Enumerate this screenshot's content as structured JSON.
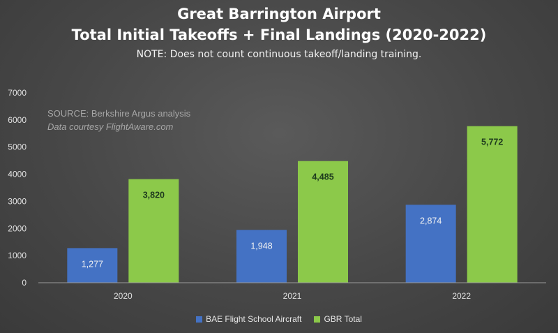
{
  "chart_data": {
    "type": "bar",
    "title": "Great Barrington Airport",
    "subtitle": "Total Initial Takeoffs + Final Landings (2020-2022)",
    "note": "NOTE: Does not count continuous takeoff/landing training.",
    "annotation": {
      "line1": "SOURCE: Berkshire Argus analysis",
      "line2": "Data courtesy FlightAware.com"
    },
    "categories": [
      "2020",
      "2021",
      "2022"
    ],
    "series": [
      {
        "name": "BAE Flight School Aircraft",
        "values": [
          1277,
          1948,
          2874
        ],
        "labels": [
          "1,277",
          "1,948",
          "2,874"
        ],
        "color": "#4472c4"
      },
      {
        "name": "GBR Total",
        "values": [
          3820,
          4485,
          5772
        ],
        "labels": [
          "3,820",
          "4,485",
          "5,772"
        ],
        "color": "#8cc94a"
      }
    ],
    "ylim": [
      0,
      7000
    ],
    "yticks": [
      "0",
      "1000",
      "2000",
      "3000",
      "4000",
      "5000",
      "6000",
      "7000"
    ],
    "grid": false,
    "legend_position": "bottom"
  }
}
